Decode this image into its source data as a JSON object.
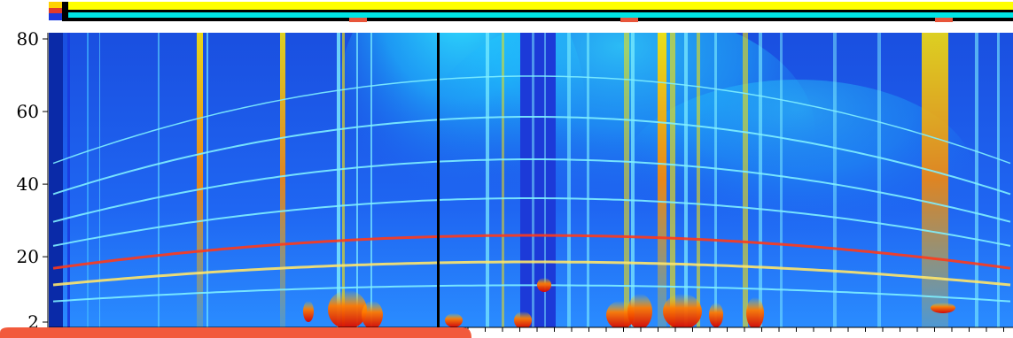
{
  "chart_data": {
    "type": "heatmap",
    "title": "",
    "xlabel": "",
    "ylabel": "",
    "y_ticks": [
      80,
      60,
      40,
      20,
      2
    ],
    "ylim": [
      2,
      80
    ],
    "colormap": "jet",
    "colors": {
      "low": "#00007f",
      "mid_low": "#0050ff",
      "mid": "#00e5ff",
      "mid_high": "#ffe600",
      "high": "#ff2000",
      "max": "#7f0000"
    },
    "status_bars": [
      {
        "color": "#ffff00",
        "role": "top-track"
      },
      {
        "color": "#00e5e5",
        "role": "middle-track"
      },
      {
        "color": "#000000",
        "role": "bottom-track",
        "markers_color": "#e8553a",
        "marker_count": 3
      }
    ],
    "vertical_marker": {
      "color": "#000000"
    },
    "bright_bands_count": 7,
    "grid": false,
    "legend": "none"
  }
}
